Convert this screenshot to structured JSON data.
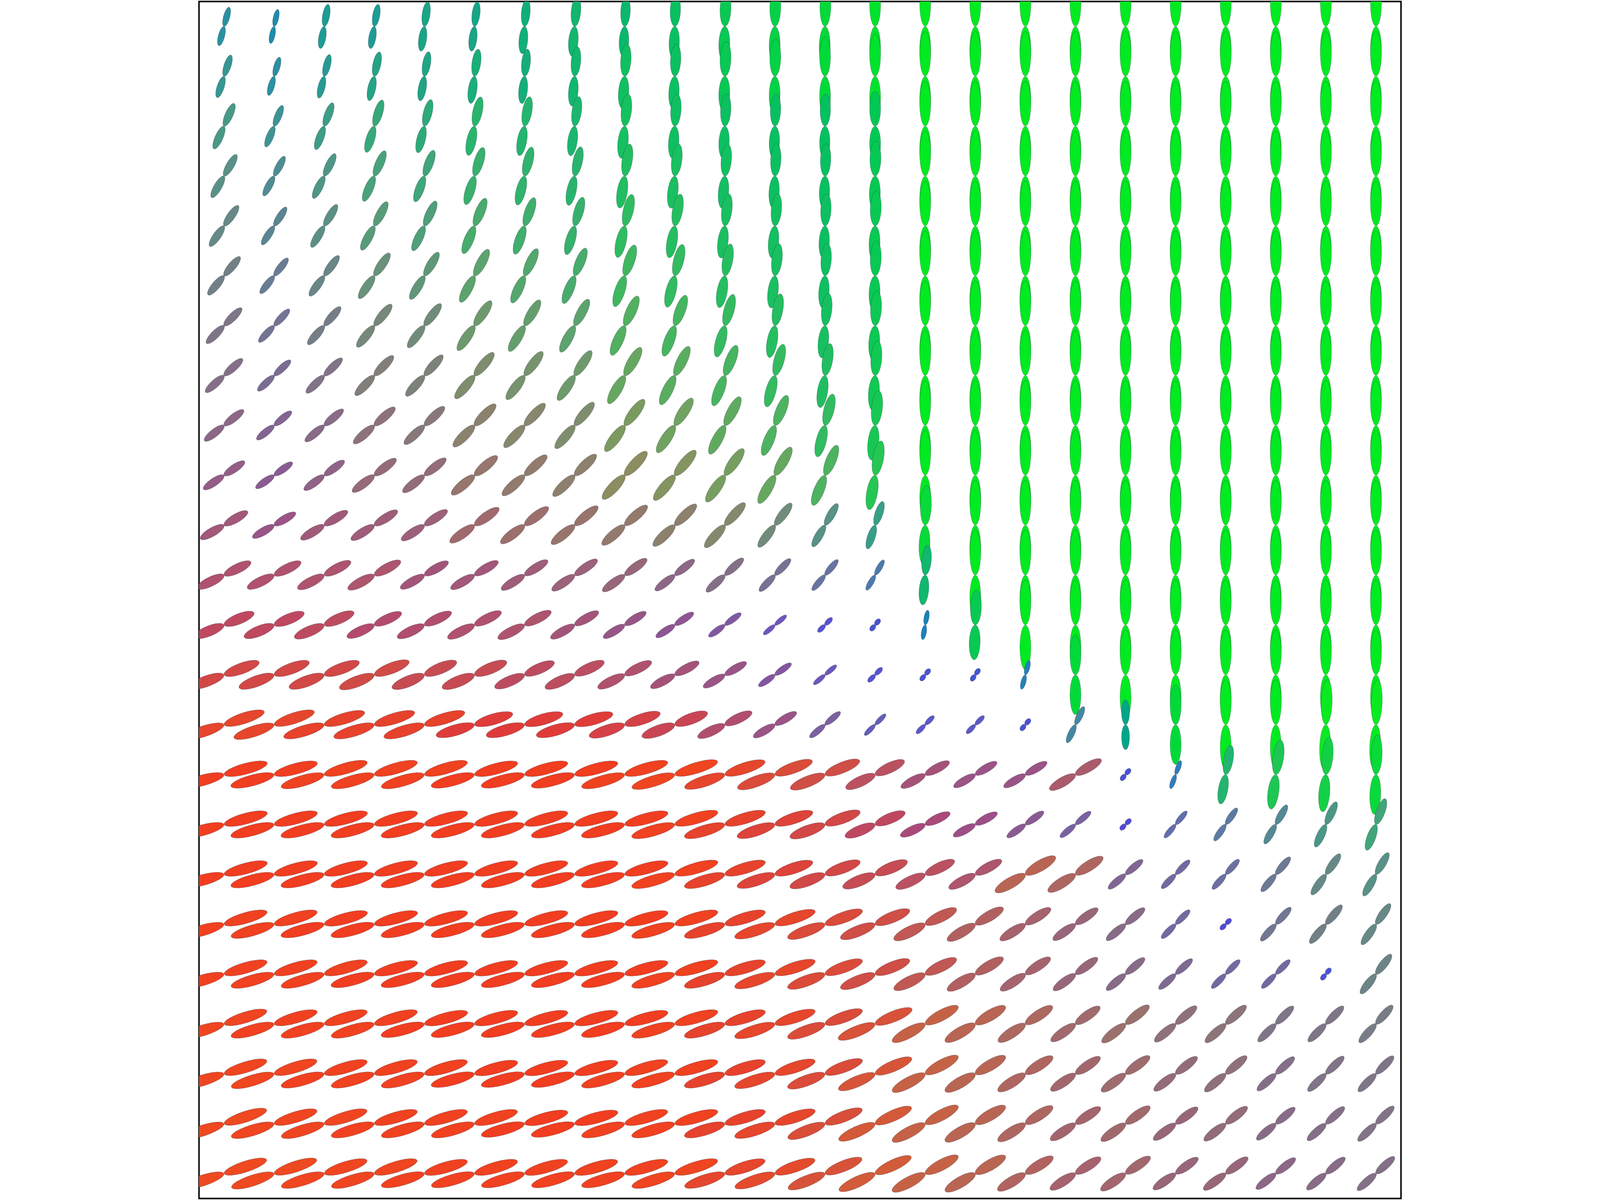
{
  "chart_data": {
    "type": "glyph_field",
    "tick_labels": false,
    "xlim": [
      -0.5,
      23.5
    ],
    "ylim": [
      23.5,
      -0.5
    ],
    "x": [
      0,
      1,
      2,
      3,
      4,
      5,
      6,
      7,
      8,
      9,
      10,
      11,
      12,
      13,
      14,
      15,
      16,
      17,
      18,
      19,
      20,
      21,
      22,
      23
    ],
    "y": [
      0,
      1,
      2,
      3,
      4,
      5,
      6,
      7,
      8,
      9,
      10,
      11,
      12,
      13,
      14,
      15,
      16,
      17,
      18,
      19,
      20,
      21,
      22,
      23
    ],
    "angles": [
      [
        75,
        78,
        80,
        80,
        82,
        83,
        85,
        85,
        87,
        88,
        88,
        89,
        89,
        90,
        90,
        90,
        90,
        90,
        90,
        90,
        90,
        90,
        90,
        90
      ],
      [
        72,
        74,
        76,
        78,
        80,
        82,
        84,
        85,
        86,
        87,
        88,
        89,
        90,
        90,
        90,
        90,
        90,
        90,
        90,
        90,
        90,
        90,
        90,
        90
      ],
      [
        66,
        68,
        70,
        73,
        76,
        78,
        80,
        82,
        84,
        86,
        87,
        88,
        89,
        90,
        90,
        90,
        90,
        90,
        90,
        90,
        90,
        90,
        90,
        90
      ],
      [
        60,
        62,
        64,
        67,
        70,
        73,
        76,
        78,
        81,
        83,
        85,
        87,
        88,
        89,
        90,
        90,
        90,
        90,
        90,
        90,
        90,
        90,
        90,
        90
      ],
      [
        55,
        57,
        59,
        62,
        65,
        68,
        71,
        74,
        77,
        80,
        83,
        85,
        87,
        88,
        90,
        90,
        90,
        90,
        90,
        90,
        90,
        90,
        90,
        90
      ],
      [
        50,
        52,
        54,
        56,
        59,
        62,
        65,
        68,
        72,
        76,
        80,
        83,
        86,
        88,
        90,
        90,
        90,
        90,
        90,
        90,
        90,
        90,
        90,
        90
      ],
      [
        45,
        47,
        49,
        51,
        53,
        56,
        59,
        62,
        66,
        70,
        75,
        80,
        84,
        87,
        90,
        90,
        90,
        90,
        90,
        90,
        90,
        90,
        90,
        90
      ],
      [
        42,
        43,
        44,
        46,
        48,
        50,
        53,
        56,
        60,
        64,
        69,
        75,
        81,
        86,
        90,
        90,
        90,
        90,
        90,
        90,
        90,
        90,
        90,
        90
      ],
      [
        38,
        39,
        40,
        41,
        43,
        45,
        47,
        50,
        53,
        57,
        62,
        68,
        76,
        84,
        90,
        90,
        90,
        90,
        90,
        90,
        90,
        90,
        90,
        90
      ],
      [
        34,
        35,
        36,
        37,
        38,
        40,
        42,
        44,
        47,
        50,
        55,
        60,
        68,
        80,
        90,
        90,
        90,
        90,
        90,
        90,
        90,
        90,
        90,
        90
      ],
      [
        30,
        30,
        31,
        32,
        33,
        35,
        37,
        39,
        41,
        44,
        48,
        53,
        60,
        72,
        88,
        90,
        90,
        90,
        90,
        90,
        90,
        90,
        90,
        90
      ],
      [
        26,
        26,
        27,
        28,
        29,
        30,
        32,
        34,
        36,
        38,
        42,
        46,
        50,
        60,
        85,
        90,
        90,
        90,
        90,
        90,
        90,
        90,
        90,
        90
      ],
      [
        22,
        22,
        23,
        24,
        25,
        26,
        27,
        29,
        31,
        33,
        36,
        40,
        45,
        50,
        80,
        88,
        90,
        90,
        90,
        90,
        90,
        90,
        90,
        90
      ],
      [
        20,
        20,
        20,
        21,
        22,
        22,
        23,
        24,
        26,
        28,
        30,
        35,
        40,
        45,
        50,
        55,
        75,
        90,
        90,
        90,
        90,
        90,
        90,
        90
      ],
      [
        18,
        18,
        17,
        17,
        17,
        16,
        16,
        16,
        18,
        20,
        25,
        30,
        40,
        45,
        45,
        45,
        50,
        65,
        90,
        90,
        90,
        90,
        88,
        88
      ],
      [
        15,
        15,
        16,
        16,
        16,
        15,
        15,
        15,
        16,
        17,
        18,
        20,
        22,
        25,
        28,
        30,
        30,
        30,
        50,
        70,
        80,
        82,
        85,
        88
      ],
      [
        15,
        15,
        15,
        15,
        15,
        15,
        15,
        15,
        15,
        16,
        17,
        18,
        20,
        22,
        25,
        28,
        35,
        40,
        45,
        50,
        55,
        60,
        65,
        70
      ],
      [
        15,
        15,
        15,
        15,
        15,
        15,
        15,
        15,
        15,
        16,
        17,
        18,
        20,
        22,
        25,
        28,
        30,
        32,
        40,
        45,
        48,
        50,
        55,
        60
      ],
      [
        16,
        16,
        15,
        15,
        15,
        15,
        15,
        15,
        15,
        16,
        17,
        18,
        20,
        22,
        26,
        30,
        32,
        35,
        40,
        45,
        45,
        48,
        50,
        55
      ],
      [
        16,
        16,
        16,
        15,
        15,
        15,
        15,
        15,
        15,
        16,
        17,
        18,
        20,
        22,
        26,
        30,
        33,
        36,
        40,
        42,
        45,
        45,
        50,
        52
      ],
      [
        17,
        16,
        16,
        16,
        15,
        15,
        15,
        15,
        15,
        16,
        17,
        18,
        20,
        22,
        28,
        30,
        33,
        35,
        38,
        40,
        42,
        45,
        45,
        48
      ],
      [
        17,
        17,
        16,
        16,
        16,
        15,
        15,
        15,
        16,
        16,
        17,
        18,
        20,
        23,
        28,
        30,
        32,
        34,
        36,
        38,
        40,
        42,
        44,
        45
      ],
      [
        18,
        17,
        17,
        16,
        16,
        16,
        15,
        15,
        16,
        16,
        17,
        18,
        21,
        24,
        28,
        30,
        32,
        33,
        35,
        36,
        38,
        40,
        42,
        44
      ],
      [
        18,
        18,
        17,
        17,
        16,
        16,
        16,
        16,
        16,
        17,
        18,
        19,
        22,
        25,
        28,
        30,
        31,
        32,
        34,
        35,
        36,
        38,
        40,
        42
      ]
    ],
    "lengths": [
      [
        0.8,
        0.7,
        0.9,
        0.9,
        1.0,
        1.0,
        1.1,
        1.2,
        1.2,
        1.3,
        1.4,
        1.5,
        1.6,
        1.7,
        1.8,
        1.8,
        1.8,
        1.8,
        1.8,
        1.8,
        1.8,
        1.8,
        1.8,
        1.8
      ],
      [
        0.9,
        0.8,
        0.9,
        1.0,
        1.0,
        1.1,
        1.1,
        1.2,
        1.3,
        1.3,
        1.4,
        1.5,
        1.6,
        1.7,
        1.8,
        1.8,
        1.8,
        1.8,
        1.8,
        1.8,
        1.8,
        1.8,
        1.8,
        1.8
      ],
      [
        1.0,
        0.9,
        1.0,
        1.1,
        1.1,
        1.2,
        1.2,
        1.2,
        1.3,
        1.3,
        1.3,
        1.3,
        1.3,
        1.4,
        1.8,
        1.8,
        1.8,
        1.8,
        1.8,
        1.8,
        1.8,
        1.8,
        1.8,
        1.8
      ],
      [
        1.0,
        0.9,
        1.0,
        1.1,
        1.1,
        1.2,
        1.2,
        1.2,
        1.3,
        1.3,
        1.3,
        1.3,
        1.3,
        1.4,
        1.8,
        1.8,
        1.8,
        1.8,
        1.8,
        1.8,
        1.8,
        1.8,
        1.8,
        1.8
      ],
      [
        1.0,
        0.9,
        1.0,
        1.1,
        1.1,
        1.2,
        1.2,
        1.2,
        1.3,
        1.3,
        1.3,
        1.3,
        1.3,
        1.4,
        1.8,
        1.8,
        1.8,
        1.8,
        1.8,
        1.8,
        1.8,
        1.8,
        1.8,
        1.8
      ],
      [
        1.0,
        0.9,
        1.0,
        1.1,
        1.1,
        1.2,
        1.2,
        1.2,
        1.3,
        1.3,
        1.3,
        1.3,
        1.3,
        1.4,
        1.8,
        1.8,
        1.8,
        1.8,
        1.8,
        1.8,
        1.8,
        1.8,
        1.8,
        1.8
      ],
      [
        1.0,
        0.9,
        1.0,
        1.1,
        1.1,
        1.2,
        1.2,
        1.2,
        1.3,
        1.3,
        1.3,
        1.3,
        1.3,
        1.4,
        1.8,
        1.8,
        1.8,
        1.8,
        1.8,
        1.8,
        1.8,
        1.8,
        1.8,
        1.8
      ],
      [
        1.0,
        0.9,
        1.0,
        1.1,
        1.1,
        1.2,
        1.2,
        1.2,
        1.3,
        1.3,
        1.3,
        1.3,
        1.3,
        1.4,
        1.8,
        1.8,
        1.8,
        1.8,
        1.8,
        1.8,
        1.8,
        1.8,
        1.8,
        1.8
      ],
      [
        1.0,
        0.9,
        1.0,
        1.1,
        1.1,
        1.2,
        1.2,
        1.2,
        1.3,
        1.3,
        1.3,
        1.3,
        1.3,
        1.4,
        1.8,
        1.8,
        1.8,
        1.8,
        1.8,
        1.8,
        1.8,
        1.8,
        1.8,
        1.8
      ],
      [
        1.0,
        0.9,
        1.0,
        1.1,
        1.1,
        1.2,
        1.2,
        1.2,
        1.3,
        1.3,
        1.3,
        1.3,
        1.3,
        1.4,
        1.8,
        1.8,
        1.8,
        1.8,
        1.8,
        1.8,
        1.8,
        1.8,
        1.8,
        1.8
      ],
      [
        1.1,
        1.0,
        1.1,
        1.1,
        1.1,
        1.2,
        1.2,
        1.2,
        1.2,
        1.2,
        1.2,
        1.1,
        1.0,
        1.0,
        1.6,
        1.8,
        1.8,
        1.8,
        1.8,
        1.8,
        1.8,
        1.8,
        1.8,
        1.8
      ],
      [
        1.2,
        1.2,
        1.2,
        1.2,
        1.1,
        1.1,
        1.1,
        1.1,
        1.1,
        1.0,
        1.0,
        0.9,
        0.8,
        0.7,
        1.2,
        1.8,
        1.8,
        1.8,
        1.8,
        1.8,
        1.8,
        1.8,
        1.8,
        1.8
      ],
      [
        1.3,
        1.3,
        1.3,
        1.2,
        1.2,
        1.2,
        1.2,
        1.1,
        1.0,
        0.9,
        0.8,
        0.6,
        0.4,
        0.3,
        0.6,
        1.4,
        1.8,
        1.8,
        1.8,
        1.8,
        1.8,
        1.8,
        1.8,
        1.8
      ],
      [
        1.5,
        1.5,
        1.5,
        1.5,
        1.4,
        1.4,
        1.3,
        1.3,
        1.2,
        1.1,
        1.0,
        0.8,
        0.6,
        0.4,
        0.3,
        0.3,
        0.6,
        1.6,
        1.8,
        1.8,
        1.8,
        1.8,
        1.8,
        1.8
      ],
      [
        1.7,
        1.7,
        1.7,
        1.7,
        1.7,
        1.6,
        1.6,
        1.6,
        1.5,
        1.4,
        1.2,
        1.0,
        0.8,
        0.6,
        0.5,
        0.5,
        0.3,
        0.8,
        1.0,
        1.6,
        1.8,
        1.8,
        1.8,
        1.8
      ],
      [
        1.8,
        1.8,
        1.8,
        1.8,
        1.8,
        1.8,
        1.8,
        1.8,
        1.8,
        1.8,
        1.7,
        1.6,
        1.5,
        1.3,
        1.1,
        1.0,
        1.0,
        1.2,
        0.3,
        0.6,
        1.2,
        1.4,
        1.5,
        1.6
      ],
      [
        1.8,
        1.8,
        1.8,
        1.8,
        1.8,
        1.8,
        1.8,
        1.8,
        1.8,
        1.8,
        1.7,
        1.6,
        1.5,
        1.3,
        1.1,
        1.0,
        0.9,
        0.8,
        0.3,
        0.7,
        0.8,
        0.9,
        1.0,
        1.1
      ],
      [
        1.8,
        1.8,
        1.8,
        1.8,
        1.8,
        1.8,
        1.8,
        1.8,
        1.8,
        1.8,
        1.7,
        1.6,
        1.5,
        1.4,
        1.3,
        1.2,
        1.4,
        1.3,
        0.9,
        0.8,
        0.8,
        0.9,
        1.0,
        1.0
      ],
      [
        1.8,
        1.8,
        1.8,
        1.8,
        1.8,
        1.8,
        1.8,
        1.8,
        1.8,
        1.8,
        1.7,
        1.7,
        1.6,
        1.5,
        1.4,
        1.3,
        1.2,
        1.1,
        1.0,
        0.8,
        0.3,
        0.9,
        1.0,
        1.0
      ],
      [
        1.8,
        1.8,
        1.8,
        1.8,
        1.8,
        1.8,
        1.8,
        1.8,
        1.8,
        1.8,
        1.7,
        1.7,
        1.6,
        1.5,
        1.4,
        1.3,
        1.2,
        1.1,
        1.0,
        0.9,
        0.8,
        0.8,
        0.3,
        1.0
      ],
      [
        1.8,
        1.8,
        1.8,
        1.8,
        1.8,
        1.8,
        1.8,
        1.8,
        1.8,
        1.8,
        1.7,
        1.7,
        1.6,
        1.6,
        1.5,
        1.4,
        1.3,
        1.2,
        1.2,
        1.1,
        1.1,
        1.0,
        1.0,
        1.0
      ],
      [
        1.8,
        1.8,
        1.8,
        1.8,
        1.8,
        1.8,
        1.8,
        1.8,
        1.8,
        1.8,
        1.7,
        1.7,
        1.6,
        1.6,
        1.5,
        1.4,
        1.3,
        1.2,
        1.2,
        1.1,
        1.1,
        1.0,
        1.0,
        1.0
      ],
      [
        1.8,
        1.8,
        1.8,
        1.8,
        1.8,
        1.8,
        1.8,
        1.8,
        1.8,
        1.8,
        1.7,
        1.7,
        1.6,
        1.6,
        1.5,
        1.4,
        1.3,
        1.2,
        1.2,
        1.1,
        1.1,
        1.0,
        1.0,
        1.0
      ],
      [
        1.8,
        1.8,
        1.8,
        1.8,
        1.8,
        1.8,
        1.8,
        1.8,
        1.8,
        1.8,
        1.7,
        1.7,
        1.6,
        1.6,
        1.5,
        1.4,
        1.3,
        1.2,
        1.2,
        1.1,
        1.1,
        1.0,
        1.0,
        1.0
      ]
    ]
  }
}
